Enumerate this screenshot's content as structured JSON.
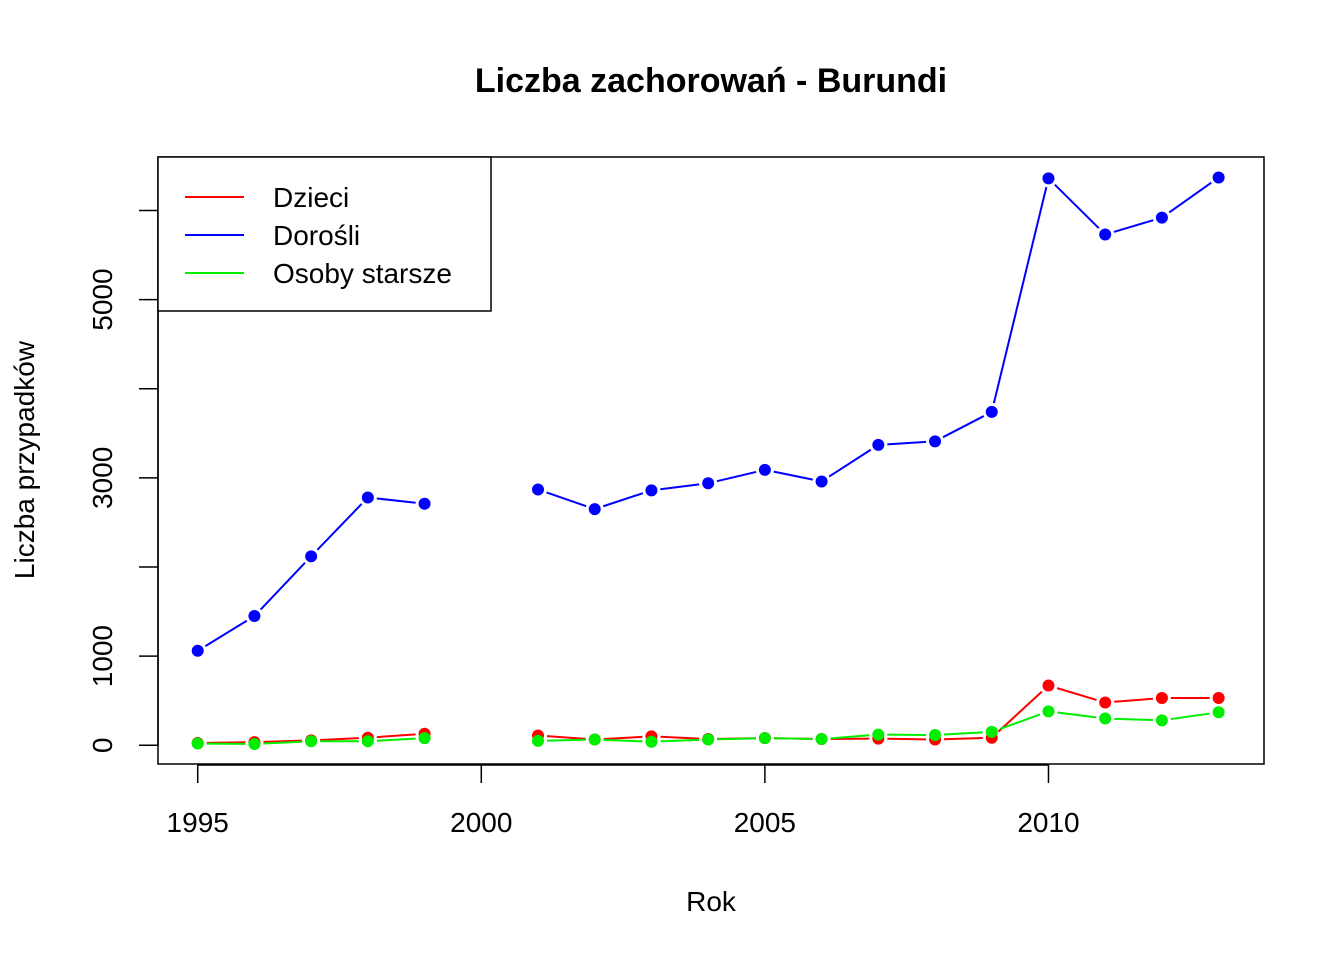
{
  "chart_data": {
    "type": "line",
    "title": "Liczba zachorowań -  Burundi",
    "xlabel": "Rok",
    "ylabel": "Liczba przypadków",
    "xlim": [
      1994.3,
      2013.8
    ],
    "ylim": [
      -210,
      6600
    ],
    "x_ticks": [
      1995,
      2000,
      2005,
      2010
    ],
    "y_ticks": [
      0,
      1000,
      2000,
      3000,
      4000,
      5000,
      6000
    ],
    "y_tick_labels": [
      "0",
      "1000",
      "",
      "3000",
      "",
      "5000",
      ""
    ],
    "legend_position": "top-left",
    "x": [
      1995,
      1996,
      1997,
      1998,
      1999,
      2000,
      2001,
      2002,
      2003,
      2004,
      2005,
      2006,
      2007,
      2008,
      2009,
      2010,
      2011,
      2012,
      2013
    ],
    "series": [
      {
        "name": "Dzieci",
        "color": "#ff0000",
        "values": [
          25,
          35,
          55,
          85,
          130,
          null,
          110,
          65,
          100,
          70,
          80,
          70,
          75,
          65,
          85,
          670,
          480,
          530,
          530
        ]
      },
      {
        "name": "Dorośli",
        "color": "#0000ff",
        "values": [
          1060,
          1450,
          2120,
          2780,
          2710,
          null,
          2870,
          2650,
          2860,
          2940,
          3090,
          2960,
          3370,
          3410,
          3740,
          6360,
          5730,
          5920,
          6370
        ]
      },
      {
        "name": "Osoby starsze",
        "color": "#00ee00",
        "values": [
          20,
          15,
          45,
          45,
          80,
          null,
          50,
          65,
          40,
          65,
          80,
          70,
          120,
          115,
          150,
          380,
          300,
          280,
          370
        ]
      }
    ]
  }
}
